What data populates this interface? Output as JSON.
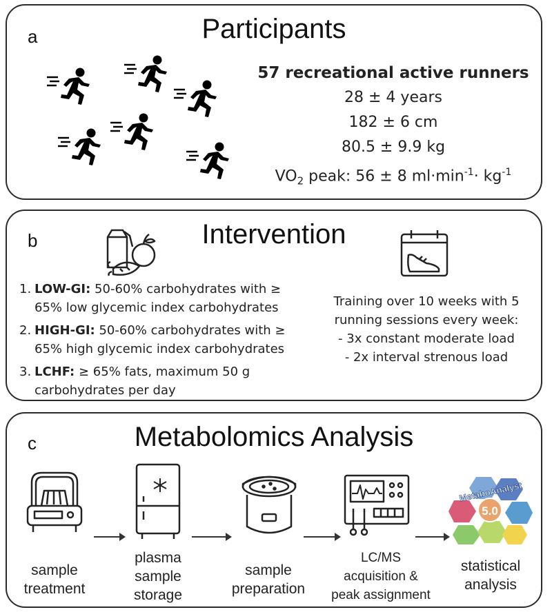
{
  "panel_a": {
    "letter": "a",
    "title": "Participants",
    "headline": "57 recreational active runners",
    "age": "28 ± 4 years",
    "height": "182 ± 6 cm",
    "weight": "80.5 ± 9.9 kg",
    "vo2_prefix": "VO",
    "vo2_sub": "2",
    "vo2_text": " peak: 56 ± 8 ml·min",
    "vo2_sup1": "-1",
    "vo2_mid": "· kg",
    "vo2_sup2": "-1",
    "runner_icon": "running-person-icon"
  },
  "panel_b": {
    "letter": "b",
    "title": "Intervention",
    "food_icon": "groceries-icon",
    "calendar_icon": "calendar-shoe-icon",
    "diets": [
      {
        "num": "1.",
        "name": "LOW-GI:",
        "line1": " 50-60% carbohydrates with ≥",
        "line2": "65% low glycemic index carbohydrates"
      },
      {
        "num": "2.",
        "name": "HIGH-GI:",
        "line1": " 50-60% carbohydrates with ≥",
        "line2": "65% high glycemic index carbohydrates"
      },
      {
        "num": "3.",
        "name": "LCHF:",
        "line1": " ≥ 65% fats, maximum 50 g",
        "line2": "carbohydrates per day"
      }
    ],
    "training": [
      "Training over 10 weeks with 5",
      "running sessions every week:",
      "- 3x constant moderate load",
      "- 2x interval strenous load"
    ]
  },
  "panel_c": {
    "letter": "c",
    "title": "Metabolomics Analysis",
    "steps": [
      {
        "icon": "centrifuge-icon",
        "line1": "sample",
        "line2": "treatment",
        "line3": ""
      },
      {
        "icon": "freezer-icon",
        "line1": "plasma",
        "line2": "sample",
        "line3": "storage"
      },
      {
        "icon": "sample-pot-icon",
        "line1": "sample",
        "line2": "preparation",
        "line3": ""
      },
      {
        "icon": "lcms-instrument-icon",
        "line1": "LC/MS",
        "line2": "acquisition &",
        "line3": "peak assignment"
      },
      {
        "icon": "metaboanalyst-logo-icon",
        "line1": "statistical",
        "line2": "analysis",
        "line3": ""
      }
    ],
    "logo_text": "MetaboAnalyst",
    "logo_version": "5.0"
  }
}
